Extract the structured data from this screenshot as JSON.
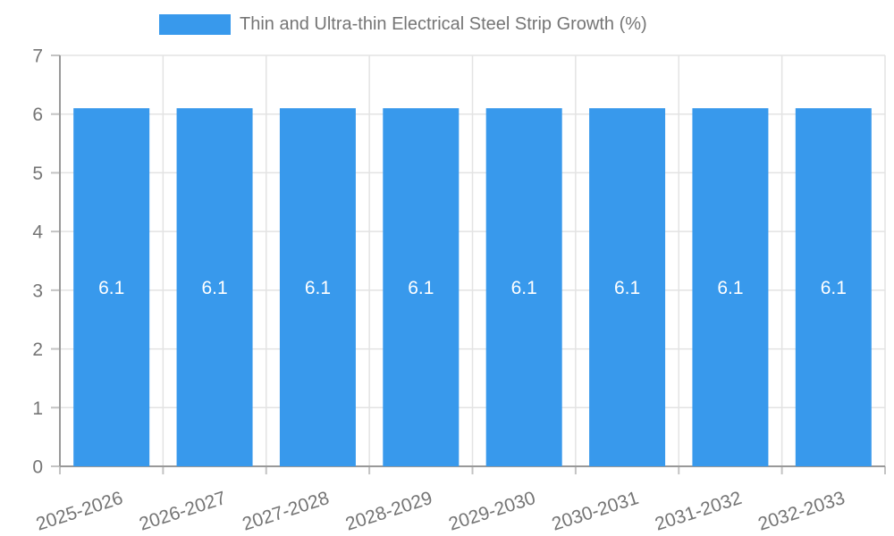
{
  "legend": {
    "label": "Thin and Ultra-thin Electrical Steel Strip Growth (%)",
    "swatch_color": "#3899ec"
  },
  "chart_data": {
    "type": "bar",
    "title": "Thin and Ultra-thin Electrical Steel Strip Growth (%)",
    "categories": [
      "2025-2026",
      "2026-2027",
      "2027-2028",
      "2028-2029",
      "2029-2030",
      "2030-2031",
      "2031-2032",
      "2032-2033"
    ],
    "series": [
      {
        "name": "Thin and Ultra-thin Electrical Steel Strip Growth (%)",
        "values": [
          6.1,
          6.1,
          6.1,
          6.1,
          6.1,
          6.1,
          6.1,
          6.1
        ]
      }
    ],
    "bar_value_labels": [
      "6.1",
      "6.1",
      "6.1",
      "6.1",
      "6.1",
      "6.1",
      "6.1",
      "6.1"
    ],
    "xlabel": "",
    "ylabel": "",
    "ylim": [
      0,
      7
    ],
    "yticks": [
      0,
      1,
      2,
      3,
      4,
      5,
      6,
      7
    ],
    "grid": true,
    "legend_position": "top",
    "colors": {
      "bar": "#3899ec",
      "bar_label_text": "#ffffff",
      "axis_text": "#757575",
      "axis_line": "#999999",
      "gridline": "#e3e3e3",
      "tick_mark": "#c3c3c3"
    }
  }
}
